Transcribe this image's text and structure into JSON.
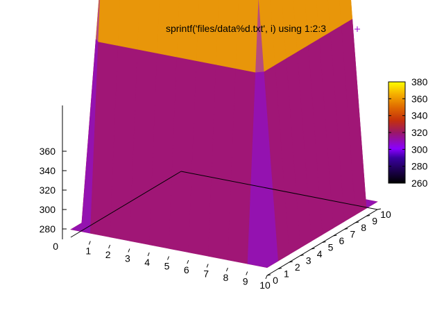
{
  "chart_data": {
    "type": "surface",
    "title": "",
    "legend": {
      "label": "sprintf('files/data%d.txt', i) using 1:2:3",
      "marker": "+",
      "color": "#9400d3",
      "placement": "top-right"
    },
    "x": [
      0,
      1,
      2,
      3,
      4,
      5,
      6,
      7,
      8,
      9,
      10
    ],
    "y": [
      0,
      1,
      2,
      3,
      4,
      5,
      6,
      7,
      8,
      9,
      10
    ],
    "z_description_rows": "row index = y, column index = x",
    "z": [
      [
        273,
        273,
        273,
        273,
        273,
        273,
        273,
        273,
        273,
        273,
        273
      ],
      [
        273,
        373,
        373,
        373,
        373,
        373,
        373,
        373,
        373,
        373,
        273
      ],
      [
        273,
        373,
        373,
        373,
        373,
        373,
        373,
        373,
        373,
        373,
        273
      ],
      [
        273,
        373,
        373,
        373,
        373,
        373,
        373,
        373,
        373,
        373,
        273
      ],
      [
        273,
        373,
        373,
        373,
        373,
        373,
        373,
        373,
        373,
        373,
        273
      ],
      [
        273,
        373,
        373,
        373,
        373,
        373,
        373,
        373,
        373,
        373,
        273
      ],
      [
        273,
        373,
        373,
        373,
        373,
        373,
        373,
        373,
        373,
        373,
        273
      ],
      [
        273,
        373,
        373,
        373,
        373,
        373,
        373,
        373,
        373,
        373,
        273
      ],
      [
        273,
        373,
        373,
        373,
        373,
        373,
        373,
        373,
        373,
        373,
        273
      ],
      [
        273,
        373,
        373,
        373,
        373,
        373,
        373,
        373,
        373,
        373,
        273
      ],
      [
        273,
        273,
        273,
        273,
        273,
        273,
        273,
        273,
        273,
        273,
        273
      ]
    ],
    "xlim": [
      0,
      10
    ],
    "ylim": [
      0,
      10
    ],
    "zlim": [
      270,
      375
    ],
    "x_ticks": [
      "1",
      "2",
      "3",
      "4",
      "5",
      "6",
      "7",
      "8",
      "9",
      "10"
    ],
    "y_ticks": [
      "0",
      "1",
      "2",
      "3",
      "4",
      "5",
      "6",
      "7",
      "8",
      "9",
      "10"
    ],
    "z_ticks": [
      "280",
      "300",
      "320",
      "340",
      "360"
    ],
    "x_corner_tick": "0",
    "colorbar": {
      "range": [
        260,
        380
      ],
      "ticks": [
        "260",
        "280",
        "300",
        "320",
        "340",
        "360",
        "380"
      ],
      "palette": "gnuplot default (black - purple - red - orange - yellow)"
    },
    "grid": false
  }
}
